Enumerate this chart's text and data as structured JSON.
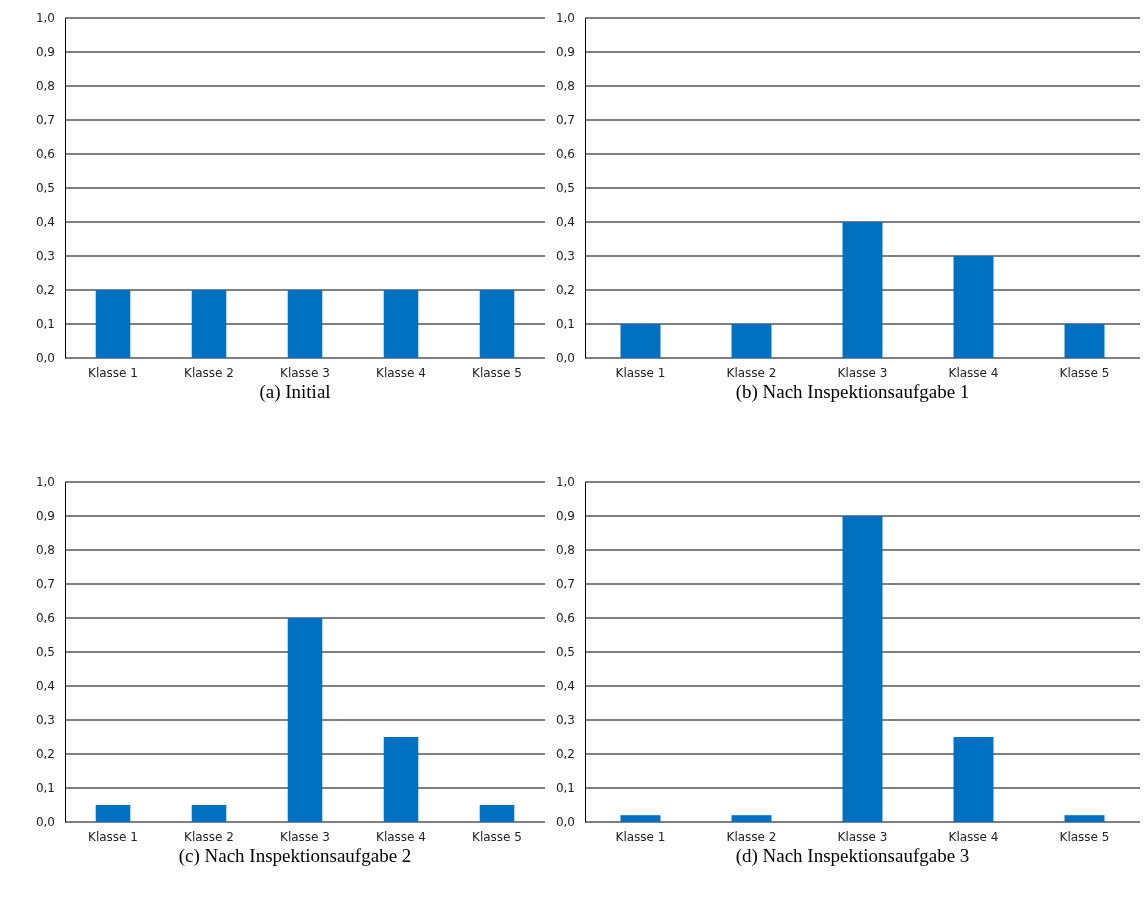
{
  "chart_data": [
    {
      "type": "bar",
      "title": "(a) Initial",
      "categories": [
        "Klasse 1",
        "Klasse 2",
        "Klasse 3",
        "Klasse 4",
        "Klasse 5"
      ],
      "values": [
        0.2,
        0.2,
        0.2,
        0.2,
        0.2
      ],
      "color": "#0070c0",
      "ylim": [
        0,
        1
      ],
      "yticks": [
        {
          "value": 0,
          "label": "0,0"
        },
        {
          "value": 0.1,
          "label": "0,1"
        },
        {
          "value": 0.2,
          "label": "0,2"
        },
        {
          "value": 0.3,
          "label": "0,3"
        },
        {
          "value": 0.4,
          "label": "0,4"
        },
        {
          "value": 0.5,
          "label": "0,5"
        },
        {
          "value": 0.6,
          "label": "0,6"
        },
        {
          "value": 0.7,
          "label": "0,7"
        },
        {
          "value": 0.8,
          "label": "0,8"
        },
        {
          "value": 0.9,
          "label": "0,9"
        },
        {
          "value": 1,
          "label": "1,0"
        }
      ],
      "grid": "y"
    },
    {
      "type": "bar",
      "title": "(b) Nach Inspektionsaufgabe 1",
      "categories": [
        "Klasse 1",
        "Klasse 2",
        "Klasse 3",
        "Klasse 4",
        "Klasse 5"
      ],
      "values": [
        0.1,
        0.1,
        0.4,
        0.3,
        0.1
      ],
      "color": "#0070c0",
      "ylim": [
        0,
        1
      ],
      "yticks": [
        {
          "value": 0,
          "label": "0,0"
        },
        {
          "value": 0.1,
          "label": "0,1"
        },
        {
          "value": 0.2,
          "label": "0,2"
        },
        {
          "value": 0.3,
          "label": "0,3"
        },
        {
          "value": 0.4,
          "label": "0,4"
        },
        {
          "value": 0.5,
          "label": "0,5"
        },
        {
          "value": 0.6,
          "label": "0,6"
        },
        {
          "value": 0.7,
          "label": "0,7"
        },
        {
          "value": 0.8,
          "label": "0,8"
        },
        {
          "value": 0.9,
          "label": "0,9"
        },
        {
          "value": 1,
          "label": "1,0"
        }
      ],
      "grid": "y"
    },
    {
      "type": "bar",
      "title": "(c) Nach Inspektionsaufgabe 2",
      "categories": [
        "Klasse 1",
        "Klasse 2",
        "Klasse 3",
        "Klasse 4",
        "Klasse 5"
      ],
      "values": [
        0.05,
        0.05,
        0.6,
        0.25,
        0.05
      ],
      "color": "#0070c0",
      "ylim": [
        0,
        1
      ],
      "yticks": [
        {
          "value": 0,
          "label": "0,0"
        },
        {
          "value": 0.1,
          "label": "0,1"
        },
        {
          "value": 0.2,
          "label": "0,2"
        },
        {
          "value": 0.3,
          "label": "0,3"
        },
        {
          "value": 0.4,
          "label": "0,4"
        },
        {
          "value": 0.5,
          "label": "0,5"
        },
        {
          "value": 0.6,
          "label": "0,6"
        },
        {
          "value": 0.7,
          "label": "0,7"
        },
        {
          "value": 0.8,
          "label": "0,8"
        },
        {
          "value": 0.9,
          "label": "0,9"
        },
        {
          "value": 1,
          "label": "1,0"
        }
      ],
      "grid": "y"
    },
    {
      "type": "bar",
      "title": "(d) Nach Inspektionsaufgabe 3",
      "categories": [
        "Klasse 1",
        "Klasse 2",
        "Klasse 3",
        "Klasse 4",
        "Klasse 5"
      ],
      "values": [
        0.02,
        0.02,
        0.9,
        0.25,
        0.02
      ],
      "color": "#0070c0",
      "ylim": [
        0,
        1
      ],
      "yticks": [
        {
          "value": 0,
          "label": "0,0"
        },
        {
          "value": 0.1,
          "label": "0,1"
        },
        {
          "value": 0.2,
          "label": "0,2"
        },
        {
          "value": 0.3,
          "label": "0,3"
        },
        {
          "value": 0.4,
          "label": "0,4"
        },
        {
          "value": 0.5,
          "label": "0,5"
        },
        {
          "value": 0.6,
          "label": "0,6"
        },
        {
          "value": 0.7,
          "label": "0,7"
        },
        {
          "value": 0.8,
          "label": "0,8"
        },
        {
          "value": 0.9,
          "label": "0,9"
        },
        {
          "value": 1,
          "label": "1,0"
        }
      ],
      "grid": "y"
    }
  ]
}
